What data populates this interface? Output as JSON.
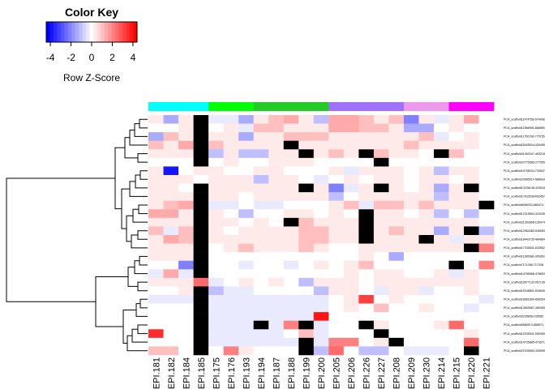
{
  "color_key": {
    "title": "Color Key",
    "xlabel": "Row Z-Score",
    "ticks": [
      -4,
      -2,
      0,
      2,
      4
    ],
    "range": [
      -4.4,
      4.4
    ],
    "gradient": [
      "#0000FF",
      "#FFFFFF",
      "#FF0000"
    ],
    "steps": 25
  },
  "chart_data": {
    "type": "heatmap",
    "columns": [
      "el_EPI.181",
      "el_EPI.182",
      "el_EPI.184",
      "el_EPI.185",
      "el_EPI.175",
      "el_EPI.176",
      "el_EPI.193",
      "el_EPI.194",
      "el_EPI.187",
      "el_EPI.188",
      "el_EPI.199",
      "el_EPI.200",
      "el_EPI.205",
      "el_EPI.206",
      "el_EPI.226",
      "el_EPI.227",
      "el_EPI.208",
      "el_EPI.209",
      "el_EPI.230",
      "el_EPI.214",
      "el_EPI.215",
      "el_EPI.220",
      "el_EPI.221"
    ],
    "column_groups": [
      {
        "color": "#00FFFF",
        "columns": [
          "el_EPI.181",
          "el_EPI.182",
          "el_EPI.184",
          "el_EPI.185"
        ]
      },
      {
        "color": "#00FF00",
        "columns": [
          "el_EPI.175",
          "el_EPI.176",
          "el_EPI.193"
        ]
      },
      {
        "color": "#22CC22",
        "columns": [
          "el_EPI.194",
          "el_EPI.187",
          "el_EPI.188",
          "el_EPI.199",
          "el_EPI.200"
        ]
      },
      {
        "color": "#A070FF",
        "columns": [
          "el_EPI.205",
          "el_EPI.206",
          "el_EPI.226",
          "el_EPI.227",
          "el_EPI.208"
        ]
      },
      {
        "color": "#EE99EE",
        "columns": [
          "el_EPI.209",
          "el_EPI.230",
          "el_EPI.214"
        ]
      },
      {
        "color": "#FF00FF",
        "columns": [
          "el_EPI.215",
          "el_EPI.220",
          "el_EPI.221"
        ]
      }
    ],
    "rows": [
      "PCA_scaffold11474758-674908",
      "PCA_scaffold11958955-868865",
      "PCA_scaffold11750736-775755",
      "PCA_scaffold25405534-435455",
      "PCA_scaffold31463347-463218",
      "PCA_scaffold22775585-2775558",
      "PCA_scaffold10755034-734537",
      "PCA_scaffold23585514-586634",
      "PCA_scaffold13236148-323518",
      "PCA_scaffold17633538-653457",
      "PCA_scaffold8088333-885474",
      "PCA_scaffold12315804-323435",
      "PCA_scaffold21353858-135474",
      "PCA_scaffold12563483-546553",
      "PCA_scaffold18443735-484864",
      "PCA_scaffold17335531-633552",
      "PCA_scaffold11395386-305363",
      "PCA_scaffold7171456-717338",
      "PCA_scaffold14786568-478653",
      "PCA_scaffold19577132-957135",
      "PCA_scaffold15348801-534845",
      "PCA_scaffold18081890-808354",
      "PCA_scaffold13653567-365365",
      "PCA_scaffold2235858-235585",
      "PCA_scaffold6585574-858574",
      "PCA_scaffold12035541-535365",
      "PCA_scaffold14735885-473571",
      "PCA_scaffold22335850-335555"
    ],
    "values": [
      [
        0.5,
        -1.5,
        0.5,
        "NA",
        -0.5,
        -0.3,
        -1.5,
        0.5,
        1.0,
        1.5,
        0.5,
        -1.0,
        1.5,
        1.5,
        1.0,
        0.5,
        1.0,
        -2.0,
        0.5,
        -0.5,
        0.5,
        1.5,
        0.0
      ],
      [
        0.0,
        0.0,
        0.5,
        "NA",
        0.0,
        0.5,
        -0.5,
        1.0,
        1.0,
        0.5,
        0.5,
        0.5,
        1.5,
        1.5,
        1.0,
        1.0,
        0.5,
        -1.5,
        -1.5,
        0.0,
        0.5,
        0.0,
        0.0
      ],
      [
        -1.5,
        1.0,
        0.5,
        "NA",
        0.5,
        0.5,
        -1.5,
        0.5,
        0.5,
        1.0,
        1.0,
        1.0,
        0.5,
        0.5,
        0.5,
        0.5,
        0.5,
        0.5,
        1.0,
        -0.5,
        0.0,
        0.5,
        0.0
      ],
      [
        1.0,
        0.5,
        1.5,
        "NA",
        1.0,
        0.5,
        0.5,
        0.5,
        0.5,
        "NA",
        0.5,
        0.5,
        0.5,
        0.5,
        0.5,
        0.5,
        0.5,
        1.0,
        0.5,
        0.5,
        0.5,
        0.5,
        0.0
      ],
      [
        0.5,
        0.5,
        0.5,
        "NA",
        -1.0,
        0.5,
        -1.0,
        -1.0,
        0.5,
        0.5,
        "NA",
        0.5,
        1.0,
        0.5,
        "NA",
        1.0,
        0.5,
        0.5,
        0.0,
        "NA",
        1.0,
        0.0,
        0.0
      ],
      [
        0.0,
        0.0,
        0.0,
        "NA",
        0.0,
        0.5,
        0.0,
        0.0,
        0.5,
        0.5,
        0.5,
        0.0,
        0.0,
        0.0,
        0.0,
        "NA",
        0.0,
        0.0,
        0.0,
        0.0,
        0.0,
        0.0,
        0.0
      ],
      [
        0.5,
        -4.0,
        0.0,
        0.5,
        0.5,
        0.0,
        0.0,
        0.5,
        0.5,
        0.0,
        0.0,
        0.0,
        0.5,
        -0.5,
        0.5,
        0.5,
        0.5,
        0.0,
        0.5,
        -1.0,
        0.5,
        0.5,
        0.0
      ],
      [
        0.5,
        0.5,
        0.5,
        0.0,
        0.5,
        0.5,
        0.5,
        -1.0,
        0.5,
        0.5,
        0.0,
        -0.5,
        0.0,
        0.5,
        0.0,
        0.5,
        0.5,
        0.0,
        0.5,
        0.5,
        0.0,
        0.5,
        0.0
      ],
      [
        0.5,
        0.5,
        0.0,
        "NA",
        0.5,
        0.5,
        0.5,
        0.5,
        0.5,
        0.5,
        "NA",
        0.5,
        -2.0,
        -0.5,
        0.5,
        "NA",
        0.5,
        0.0,
        0.5,
        -1.5,
        0.5,
        "NA",
        0.0
      ],
      [
        0.5,
        0.5,
        0.5,
        "NA",
        0.5,
        0.5,
        0.0,
        0.5,
        0.5,
        0.5,
        0.5,
        0.5,
        -1.0,
        0.0,
        0.5,
        0.5,
        0.5,
        0.5,
        0.5,
        -1.0,
        0.5,
        0.5,
        0.0
      ],
      [
        0.5,
        1.0,
        1.5,
        "NA",
        -0.5,
        -0.5,
        0.0,
        -0.5,
        -0.5,
        0.0,
        0.0,
        0.0,
        0.5,
        1.0,
        -0.5,
        1.0,
        1.0,
        0.5,
        1.0,
        0.5,
        0.5,
        0.5,
        "NA"
      ],
      [
        1.5,
        1.5,
        0.5,
        "NA",
        0.5,
        0.0,
        -1.0,
        0.0,
        0.0,
        0.5,
        0.5,
        0.0,
        0.5,
        0.0,
        "NA",
        0.5,
        0.5,
        0.0,
        0.5,
        -1.0,
        0.0,
        -1.0,
        0.0
      ],
      [
        0.5,
        0.5,
        0.5,
        "NA",
        0.5,
        0.5,
        0.0,
        0.5,
        0.0,
        "NA",
        1.0,
        0.5,
        0.5,
        0.5,
        "NA",
        0.5,
        0.5,
        0.5,
        0.5,
        0.5,
        0.5,
        0.5,
        0.0
      ],
      [
        1.0,
        -0.5,
        1.0,
        "NA",
        0.5,
        0.0,
        0.5,
        0.5,
        0.5,
        0.5,
        1.0,
        1.0,
        0.5,
        0.5,
        "NA",
        0.5,
        1.0,
        0.5,
        0.5,
        -1.5,
        0.5,
        "NA",
        -1.0
      ],
      [
        0.5,
        1.5,
        1.0,
        "NA",
        0.5,
        0.5,
        0.5,
        0.5,
        0.5,
        0.5,
        1.0,
        1.0,
        0.5,
        0.5,
        "NA",
        0.5,
        0.5,
        0.5,
        "NA",
        0.5,
        -0.5,
        0.5,
        0.5
      ],
      [
        0.5,
        0.5,
        0.5,
        "NA",
        0.0,
        0.5,
        1.0,
        0.5,
        0.5,
        0.5,
        1.0,
        0.5,
        0.0,
        0.0,
        0.5,
        0.5,
        0.5,
        0.5,
        0.5,
        0.5,
        0.5,
        "NA",
        2.0
      ],
      [
        0.5,
        0.5,
        0.5,
        "NA",
        0.0,
        0.0,
        0.0,
        0.0,
        0.0,
        0.0,
        0.0,
        0.0,
        0.0,
        0.0,
        0.5,
        0.0,
        -1.5,
        0.0,
        0.0,
        0.0,
        0.0,
        0.0,
        0.0
      ],
      [
        0.0,
        0.0,
        -2.0,
        "NA",
        0.0,
        0.0,
        -0.5,
        0.0,
        0.0,
        -0.5,
        0.0,
        0.5,
        0.0,
        0.5,
        1.0,
        0.0,
        0.0,
        0.0,
        0.0,
        0.0,
        "NA",
        0.0,
        2.0
      ],
      [
        -0.5,
        1.5,
        -0.5,
        "NA",
        0.0,
        0.0,
        0.0,
        0.0,
        0.0,
        0.0,
        0.0,
        0.0,
        0.0,
        0.5,
        0.0,
        0.5,
        0.5,
        0.0,
        0.0,
        0.5,
        -0.5,
        0.5,
        0.0
      ],
      [
        0.5,
        0.5,
        0.5,
        2.5,
        -0.5,
        0.0,
        0.5,
        0.0,
        0.5,
        0.0,
        -1.0,
        0.5,
        0.5,
        0.5,
        0.0,
        0.5,
        0.5,
        0.5,
        0.5,
        0.5,
        0.5,
        0.5,
        0.0
      ],
      [
        0.0,
        0.0,
        0.5,
        "NA",
        -1.0,
        -0.5,
        -0.5,
        0.0,
        0.0,
        0.0,
        0.0,
        -1.0,
        0.5,
        0.5,
        0.0,
        -0.5,
        0.5,
        0.5,
        -0.5,
        0.0,
        0.0,
        0.5,
        0.0
      ],
      [
        -0.5,
        -0.5,
        -0.5,
        "NA",
        -0.5,
        -0.5,
        -0.5,
        -0.5,
        -0.5,
        -0.5,
        -0.5,
        -0.5,
        0.0,
        0.5,
        3.0,
        0.0,
        0.5,
        0.0,
        0.0,
        0.0,
        0.0,
        0.0,
        -0.5
      ],
      [
        0.0,
        0.0,
        0.0,
        "NA",
        -0.5,
        -0.5,
        -0.5,
        -0.5,
        -0.5,
        -0.5,
        -0.5,
        -0.5,
        0.0,
        0.5,
        0.0,
        1.0,
        0.0,
        0.0,
        0.5,
        0.0,
        0.0,
        -0.5,
        0.0
      ],
      [
        0.0,
        0.0,
        0.0,
        "NA",
        -0.5,
        -0.5,
        -0.5,
        -0.5,
        -0.5,
        -0.5,
        -0.5,
        4.0,
        0.0,
        0.0,
        0.0,
        0.0,
        0.0,
        0.0,
        0.0,
        0.0,
        0.0,
        0.0,
        0.0
      ],
      [
        0.0,
        0.0,
        0.0,
        "NA",
        -0.5,
        -0.5,
        -0.5,
        "NA",
        -0.5,
        2.0,
        "NA",
        -0.5,
        0.0,
        0.0,
        "NA",
        0.5,
        0.0,
        0.0,
        0.0,
        0.5,
        2.5,
        0.0,
        0.0
      ],
      [
        3.5,
        0.0,
        0.0,
        "NA",
        -0.5,
        -0.5,
        -0.5,
        -0.5,
        -0.5,
        0.0,
        1.0,
        -0.5,
        0.0,
        0.0,
        0.0,
        "NA",
        0.0,
        0.0,
        0.0,
        0.0,
        0.0,
        0.5,
        0.0
      ],
      [
        0.0,
        0.0,
        0.0,
        "NA",
        -0.5,
        -0.5,
        -0.5,
        -0.5,
        -0.5,
        -0.5,
        "NA",
        -0.5,
        2.0,
        2.0,
        0.0,
        0.5,
        "NA",
        0.0,
        0.0,
        0.0,
        0.0,
        2.5,
        0.0
      ],
      [
        1.0,
        1.0,
        0.0,
        "NA",
        0.0,
        2.0,
        0.5,
        0.0,
        0.0,
        0.0,
        "NA",
        -1.0,
        2.5,
        0.0,
        -1.0,
        -1.0,
        0.0,
        -0.5,
        -0.5,
        -0.5,
        0.0,
        "NA",
        0.0
      ]
    ],
    "na_color": "#000000",
    "row_dendrogram": true
  }
}
